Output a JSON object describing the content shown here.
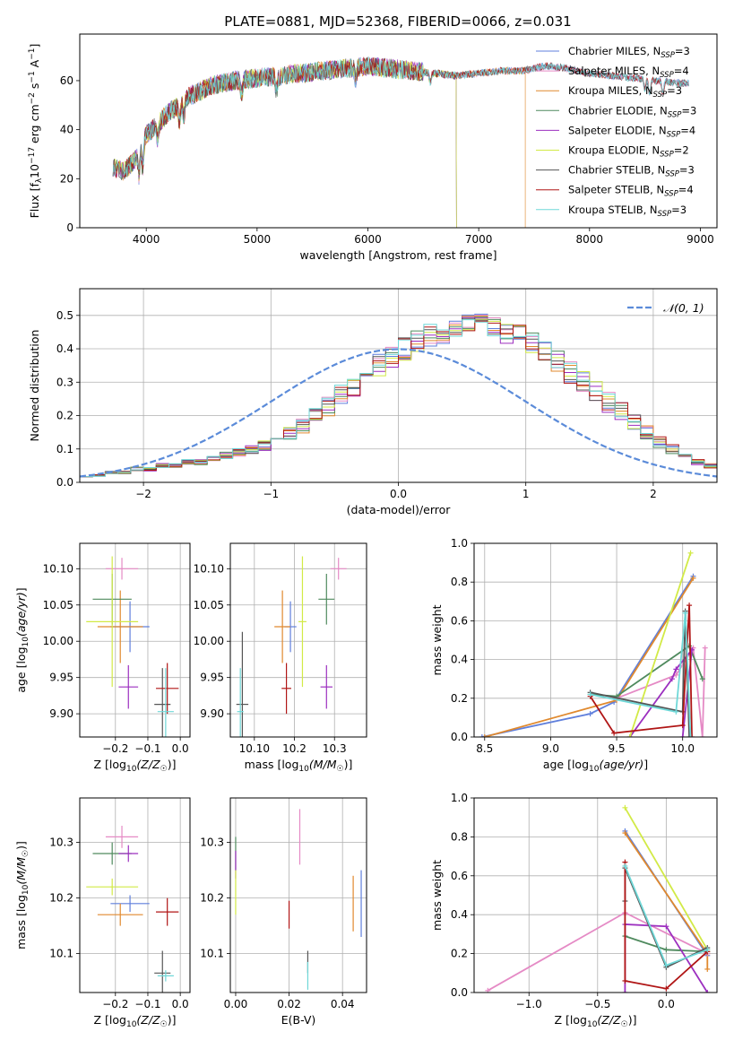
{
  "figure_title": "PLATE=0881, MJD=52368, FIBERID=0066, z=0.031",
  "colors": {
    "Chabrier MILES": "#5f7fdc",
    "Salpeter MILES": "#e58ac5",
    "Kroupa MILES": "#e0892e",
    "Chabrier ELODIE": "#4f8a5e",
    "Salpeter ELODIE": "#9c2fbf",
    "Kroupa ELODIE": "#d2ea46",
    "Chabrier STELIB": "#555555",
    "Salpeter STELIB": "#b01515",
    "Kroupa STELIB": "#6fd8d8",
    "normal": "#5b8bd9"
  },
  "chart_data": [
    {
      "id": "spectrum",
      "type": "line",
      "title": "PLATE=0881, MJD=52368, FIBERID=0066, z=0.031",
      "xlabel": "wavelength [Angstrom, rest frame]",
      "ylabel": "Flux [fλ 10⁻¹⁷ erg cm⁻² s⁻¹ A⁻¹]",
      "xlim": [
        3400,
        9150
      ],
      "ylim": [
        0,
        79
      ],
      "xticks": [
        4000,
        5000,
        6000,
        7000,
        8000,
        9000
      ],
      "yticks": [
        0,
        20,
        40,
        60
      ],
      "legend_position": "top-right",
      "continuum": [
        [
          3700,
          25
        ],
        [
          3800,
          23
        ],
        [
          3900,
          28
        ],
        [
          4000,
          38
        ],
        [
          4100,
          42
        ],
        [
          4200,
          47
        ],
        [
          4300,
          50
        ],
        [
          4400,
          54
        ],
        [
          4500,
          56
        ],
        [
          4600,
          58
        ],
        [
          4800,
          60
        ],
        [
          5000,
          61
        ],
        [
          5200,
          62
        ],
        [
          5400,
          63
        ],
        [
          5600,
          64
        ],
        [
          5800,
          65
        ],
        [
          6000,
          66
        ],
        [
          6200,
          65
        ],
        [
          6400,
          64
        ],
        [
          6600,
          63
        ],
        [
          6800,
          62
        ],
        [
          7000,
          63
        ],
        [
          7200,
          64
        ],
        [
          7400,
          64
        ],
        [
          7600,
          66
        ],
        [
          7800,
          65
        ],
        [
          8000,
          63
        ],
        [
          8200,
          62
        ],
        [
          8400,
          61
        ],
        [
          8600,
          60
        ],
        [
          8800,
          59
        ],
        [
          8900,
          59
        ]
      ],
      "series": [
        {
          "name": "Chabrier MILES, N",
          "sub": "SSP",
          "nssp": "=3",
          "key": "Chabrier MILES",
          "end": 8900
        },
        {
          "name": "Salpeter MILES, N",
          "sub": "SSP",
          "nssp": "=4",
          "key": "Salpeter MILES",
          "end": 8900
        },
        {
          "name": "Kroupa MILES, N",
          "sub": "SSP",
          "nssp": "=3",
          "key": "Kroupa MILES",
          "end": 7420
        },
        {
          "name": "Chabrier ELODIE, N",
          "sub": "SSP",
          "nssp": "=3",
          "key": "Chabrier ELODIE",
          "end": 6800
        },
        {
          "name": "Salpeter ELODIE, N",
          "sub": "SSP",
          "nssp": "=4",
          "key": "Salpeter ELODIE",
          "end": 6800
        },
        {
          "name": "Kroupa ELODIE, N",
          "sub": "SSP",
          "nssp": "=2",
          "key": "Kroupa ELODIE",
          "end": 6800
        },
        {
          "name": "Chabrier STELIB, N",
          "sub": "SSP",
          "nssp": "=3",
          "key": "Chabrier STELIB",
          "end": 8900
        },
        {
          "name": "Salpeter STELIB, N",
          "sub": "SSP",
          "nssp": "=4",
          "key": "Salpeter STELIB",
          "end": 8900
        },
        {
          "name": "Kroupa STELIB, N",
          "sub": "SSP",
          "nssp": "=3",
          "key": "Kroupa STELIB",
          "end": 8900
        }
      ]
    },
    {
      "id": "residuals",
      "type": "line",
      "xlabel": "(data-model)/error",
      "ylabel": "Normed distribution",
      "xlim": [
        -2.5,
        2.5
      ],
      "ylim": [
        0,
        0.58
      ],
      "xticks": [
        -2,
        -1,
        0,
        1,
        2
      ],
      "yticks": [
        0.0,
        0.1,
        0.2,
        0.3,
        0.4,
        0.5
      ],
      "grid": true,
      "legend_position": "top-right",
      "legend_label": "𝒩(0, 1)",
      "bin_width": 0.1,
      "histogram_envelope": [
        0.02,
        0.02,
        0.03,
        0.03,
        0.04,
        0.04,
        0.05,
        0.05,
        0.06,
        0.06,
        0.07,
        0.08,
        0.09,
        0.1,
        0.11,
        0.13,
        0.15,
        0.17,
        0.2,
        0.23,
        0.26,
        0.29,
        0.32,
        0.35,
        0.38,
        0.4,
        0.42,
        0.44,
        0.45,
        0.46,
        0.47,
        0.47,
        0.46,
        0.45,
        0.44,
        0.42,
        0.39,
        0.36,
        0.33,
        0.3,
        0.27,
        0.24,
        0.21,
        0.18,
        0.15,
        0.12,
        0.1,
        0.08,
        0.06,
        0.05
      ]
    },
    {
      "id": "z-age",
      "type": "scatter",
      "xlabel": "Z [log10(Z/Z☉)]",
      "ylabel": "age  [log10(age/yr)]",
      "xlim": [
        -0.31,
        0.03
      ],
      "ylim": [
        9.868,
        10.135
      ],
      "xticks": [
        -0.2,
        -0.1,
        0.0
      ],
      "yticks": [
        9.9,
        9.95,
        10.0,
        10.05,
        10.1
      ],
      "grid": true,
      "points": [
        {
          "key": "Chabrier MILES",
          "x": -0.155,
          "y": 10.02,
          "xerr": 0.06,
          "yerr": 0.035
        },
        {
          "key": "Salpeter MILES",
          "x": -0.18,
          "y": 10.1,
          "xerr": 0.05,
          "yerr": 0.015
        },
        {
          "key": "Kroupa MILES",
          "x": -0.185,
          "y": 10.02,
          "xerr": 0.07,
          "yerr": 0.05
        },
        {
          "key": "Chabrier ELODIE",
          "x": -0.21,
          "y": 10.058,
          "xerr": 0.06,
          "yerr": 0.035
        },
        {
          "key": "Salpeter ELODIE",
          "x": -0.16,
          "y": 9.937,
          "xerr": 0.03,
          "yerr": 0.03
        },
        {
          "key": "Kroupa ELODIE",
          "x": -0.21,
          "y": 10.027,
          "xerr": 0.08,
          "yerr": 0.09
        },
        {
          "key": "Chabrier STELIB",
          "x": -0.055,
          "y": 9.913,
          "xerr": 0.025,
          "yerr": 0.05
        },
        {
          "key": "Salpeter STELIB",
          "x": -0.04,
          "y": 9.935,
          "xerr": 0.035,
          "yerr": 0.035
        },
        {
          "key": "Kroupa STELIB",
          "x": -0.045,
          "y": 9.903,
          "xerr": 0.025,
          "yerr": 0.06
        }
      ]
    },
    {
      "id": "mass-age",
      "type": "scatter",
      "xlabel": "mass [log10(M/M☉)]",
      "ylabel": "",
      "xlim": [
        10.04,
        10.38
      ],
      "ylim": [
        9.868,
        10.135
      ],
      "xticks": [
        10.1,
        10.2,
        10.3
      ],
      "yticks": [
        9.9,
        9.95,
        10.0,
        10.05,
        10.1
      ],
      "grid": true,
      "points": [
        {
          "key": "Chabrier MILES",
          "x": 10.19,
          "y": 10.02,
          "xerr": 0.015,
          "yerr": 0.035
        },
        {
          "key": "Salpeter MILES",
          "x": 10.31,
          "y": 10.1,
          "xerr": 0.02,
          "yerr": 0.015
        },
        {
          "key": "Kroupa MILES",
          "x": 10.17,
          "y": 10.02,
          "xerr": 0.02,
          "yerr": 0.05
        },
        {
          "key": "Chabrier ELODIE",
          "x": 10.28,
          "y": 10.058,
          "xerr": 0.02,
          "yerr": 0.035
        },
        {
          "key": "Salpeter ELODIE",
          "x": 10.28,
          "y": 9.937,
          "xerr": 0.015,
          "yerr": 0.03
        },
        {
          "key": "Kroupa ELODIE",
          "x": 10.22,
          "y": 10.027,
          "xerr": 0.01,
          "yerr": 0.09
        },
        {
          "key": "Chabrier STELIB",
          "x": 10.07,
          "y": 9.913,
          "xerr": 0.015,
          "yerr": 0.1
        },
        {
          "key": "Salpeter STELIB",
          "x": 10.18,
          "y": 9.935,
          "xerr": 0.012,
          "yerr": 0.035
        },
        {
          "key": "Kroupa STELIB",
          "x": 10.065,
          "y": 9.903,
          "xerr": 0.008,
          "yerr": 0.06
        }
      ]
    },
    {
      "id": "age-weight",
      "type": "line",
      "xlabel": "age  [log10(age/yr)]",
      "ylabel": "mass weight",
      "xlim": [
        8.42,
        10.26
      ],
      "ylim": [
        0,
        1.0
      ],
      "xticks": [
        8.5,
        9.0,
        9.5,
        10.0
      ],
      "yticks": [
        0.0,
        0.2,
        0.4,
        0.6,
        0.8,
        1.0
      ],
      "grid": true,
      "series": [
        {
          "key": "Chabrier MILES",
          "x": [
            8.48,
            9.3,
            9.48,
            10.08
          ],
          "y": [
            0.0,
            0.12,
            0.18,
            0.83
          ]
        },
        {
          "key": "Kroupa MILES",
          "x": [
            8.5,
            9.5,
            10.08
          ],
          "y": [
            0.0,
            0.19,
            0.82
          ]
        },
        {
          "key": "Salpeter MILES",
          "x": [
            9.5,
            9.95,
            10.08,
            10.15,
            10.17
          ],
          "y": [
            0.2,
            0.32,
            0.46,
            0.0,
            0.46
          ]
        },
        {
          "key": "Chabrier ELODIE",
          "x": [
            9.3,
            9.5,
            10.05,
            10.15
          ],
          "y": [
            0.22,
            0.21,
            0.47,
            0.3
          ]
        },
        {
          "key": "Salpeter ELODIE",
          "x": [
            9.6,
            9.92,
            9.95,
            10.07,
            10.0
          ],
          "y": [
            0.0,
            0.3,
            0.35,
            0.45,
            0.0
          ]
        },
        {
          "key": "Kroupa ELODIE",
          "x": [
            9.6,
            10.06
          ],
          "y": [
            0.0,
            0.95
          ]
        },
        {
          "key": "Chabrier STELIB",
          "x": [
            9.3,
            10.0,
            10.02,
            10.05
          ],
          "y": [
            0.23,
            0.13,
            0.65,
            0.0
          ]
        },
        {
          "key": "Salpeter STELIB",
          "x": [
            9.3,
            9.48,
            10.0,
            10.05,
            10.07
          ],
          "y": [
            0.21,
            0.02,
            0.06,
            0.68,
            0.0
          ]
        },
        {
          "key": "Kroupa STELIB",
          "x": [
            9.3,
            9.95,
            10.02,
            10.06
          ],
          "y": [
            0.22,
            0.13,
            0.64,
            0.0
          ]
        }
      ]
    },
    {
      "id": "z-mass",
      "type": "scatter",
      "xlabel": "Z [log10(Z/Z☉)]",
      "ylabel": "mass [log10(M/M☉)]",
      "xlim": [
        -0.31,
        0.03
      ],
      "ylim": [
        10.03,
        10.38
      ],
      "xticks": [
        -0.2,
        -0.1,
        0.0
      ],
      "yticks": [
        10.1,
        10.2,
        10.3
      ],
      "grid": true,
      "points": [
        {
          "key": "Chabrier MILES",
          "x": -0.155,
          "y": 10.19,
          "xerr": 0.06,
          "yerr": 0.015
        },
        {
          "key": "Salpeter MILES",
          "x": -0.18,
          "y": 10.31,
          "xerr": 0.05,
          "yerr": 0.02
        },
        {
          "key": "Kroupa MILES",
          "x": -0.185,
          "y": 10.17,
          "xerr": 0.07,
          "yerr": 0.02
        },
        {
          "key": "Chabrier ELODIE",
          "x": -0.21,
          "y": 10.28,
          "xerr": 0.06,
          "yerr": 0.02
        },
        {
          "key": "Salpeter ELODIE",
          "x": -0.16,
          "y": 10.28,
          "xerr": 0.03,
          "yerr": 0.015
        },
        {
          "key": "Kroupa ELODIE",
          "x": -0.21,
          "y": 10.22,
          "xerr": 0.08,
          "yerr": 0.015
        },
        {
          "key": "Chabrier STELIB",
          "x": -0.055,
          "y": 10.065,
          "xerr": 0.025,
          "yerr": 0.04
        },
        {
          "key": "Salpeter STELIB",
          "x": -0.04,
          "y": 10.175,
          "xerr": 0.035,
          "yerr": 0.025
        },
        {
          "key": "Kroupa STELIB",
          "x": -0.045,
          "y": 10.06,
          "xerr": 0.025,
          "yerr": 0.01
        }
      ]
    },
    {
      "id": "ebv-mass",
      "type": "scatter",
      "xlabel": "E(B-V)",
      "ylabel": "",
      "xlim": [
        -0.002,
        0.049
      ],
      "ylim": [
        10.03,
        10.38
      ],
      "xticks": [
        0.0,
        0.02,
        0.04
      ],
      "yticks": [
        10.1,
        10.2,
        10.3
      ],
      "grid": true,
      "points": [
        {
          "key": "Chabrier MILES",
          "x": 0.047,
          "y": 10.19,
          "xerr": 0.0,
          "yerr": 0.06
        },
        {
          "key": "Salpeter MILES",
          "x": 0.024,
          "y": 10.31,
          "xerr": 0.0,
          "yerr": 0.05
        },
        {
          "key": "Kroupa MILES",
          "x": 0.044,
          "y": 10.19,
          "xerr": 0.0,
          "yerr": 0.05
        },
        {
          "key": "Chabrier ELODIE",
          "x": 0.0,
          "y": 10.28,
          "xerr": 0.0,
          "yerr": 0.03
        },
        {
          "key": "Salpeter ELODIE",
          "x": 0.0,
          "y": 10.26,
          "xerr": 0.0,
          "yerr": 0.025
        },
        {
          "key": "Kroupa ELODIE",
          "x": 0.0,
          "y": 10.21,
          "xerr": 0.0,
          "yerr": 0.04
        },
        {
          "key": "Chabrier STELIB",
          "x": 0.027,
          "y": 10.085,
          "xerr": 0.0,
          "yerr": 0.02
        },
        {
          "key": "Salpeter STELIB",
          "x": 0.02,
          "y": 10.17,
          "xerr": 0.0,
          "yerr": 0.025
        },
        {
          "key": "Kroupa STELIB",
          "x": 0.027,
          "y": 10.06,
          "xerr": 0.0,
          "yerr": 0.025
        }
      ]
    },
    {
      "id": "z-weight",
      "type": "line",
      "xlabel": "Z [log10(Z/Z☉)]",
      "ylabel": "mass weight",
      "xlim": [
        -1.4,
        0.37
      ],
      "ylim": [
        0,
        1.0
      ],
      "xticks": [
        -1.0,
        -0.5,
        0.0
      ],
      "yticks": [
        0.0,
        0.2,
        0.4,
        0.6,
        0.8,
        1.0
      ],
      "grid": true,
      "series": [
        {
          "key": "Chabrier MILES",
          "x": [
            -0.3,
            0.3
          ],
          "y": [
            0.83,
            0.19
          ]
        },
        {
          "key": "Kroupa MILES",
          "x": [
            -0.3,
            0.3,
            0.3
          ],
          "y": [
            0.82,
            0.2,
            0.12
          ]
        },
        {
          "key": "Salpeter MILES",
          "x": [
            -1.3,
            -0.3,
            0.3
          ],
          "y": [
            0.01,
            0.41,
            0.2
          ]
        },
        {
          "key": "Chabrier ELODIE",
          "x": [
            -0.3,
            0.0,
            0.3
          ],
          "y": [
            0.29,
            0.22,
            0.21
          ]
        },
        {
          "key": "Salpeter ELODIE",
          "x": [
            -0.3,
            -0.3,
            0.0,
            0.3
          ],
          "y": [
            0.0,
            0.35,
            0.34,
            0.0
          ]
        },
        {
          "key": "Kroupa ELODIE",
          "x": [
            -0.3,
            0.3
          ],
          "y": [
            0.95,
            0.22
          ]
        },
        {
          "key": "Chabrier STELIB",
          "x": [
            -0.3,
            -0.3,
            0.0,
            0.3
          ],
          "y": [
            0.47,
            0.64,
            0.13,
            0.23
          ]
        },
        {
          "key": "Salpeter STELIB",
          "x": [
            -0.3,
            -0.3,
            0.0,
            0.3
          ],
          "y": [
            0.67,
            0.06,
            0.02,
            0.21
          ]
        },
        {
          "key": "Kroupa STELIB",
          "x": [
            -0.3,
            0.0,
            0.3
          ],
          "y": [
            0.65,
            0.14,
            0.22
          ]
        }
      ]
    }
  ]
}
